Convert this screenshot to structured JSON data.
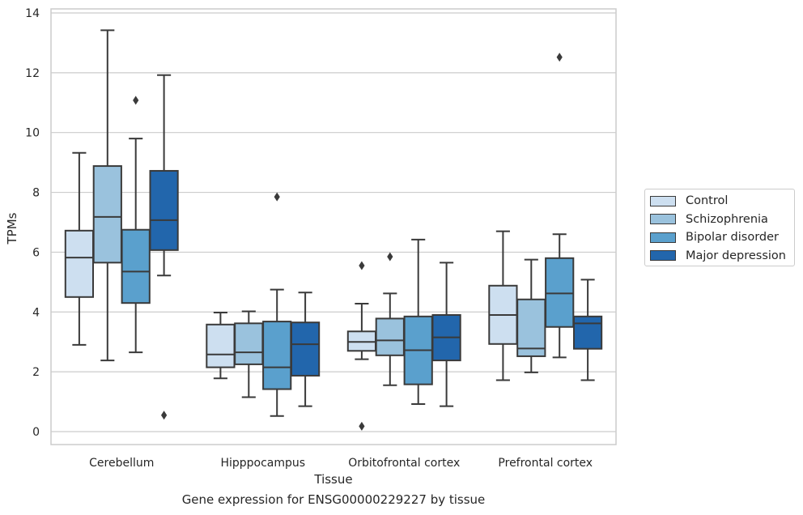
{
  "chart_data": {
    "type": "box",
    "title": "",
    "caption": "Gene expression for ENSG00000229227 by tissue",
    "xlabel": "Tissue",
    "ylabel": "TPMs",
    "ylim": [
      -0.45,
      14.15
    ],
    "yticks": [
      0,
      2,
      4,
      6,
      8,
      10,
      12,
      14
    ],
    "grid": "y",
    "legend_position": "right",
    "categories": [
      "Cerebellum",
      "Hipppocampus",
      "Orbitofrontal cortex",
      "Prefrontal cortex"
    ],
    "series": [
      {
        "name": "Control",
        "color": "#cddff0",
        "boxes": [
          {
            "whisker_low": 2.9,
            "q1": 4.5,
            "median": 5.82,
            "q3": 6.72,
            "whisker_high": 9.32,
            "outliers": []
          },
          {
            "whisker_low": 1.78,
            "q1": 2.15,
            "median": 2.58,
            "q3": 3.58,
            "whisker_high": 3.98,
            "outliers": []
          },
          {
            "whisker_low": 2.42,
            "q1": 2.7,
            "median": 3.0,
            "q3": 3.35,
            "whisker_high": 4.28,
            "outliers": [
              5.55,
              0.18
            ]
          },
          {
            "whisker_low": 1.72,
            "q1": 2.93,
            "median": 3.9,
            "q3": 4.88,
            "whisker_high": 6.7,
            "outliers": []
          }
        ]
      },
      {
        "name": "Schizophrenia",
        "color": "#9ac2dd",
        "boxes": [
          {
            "whisker_low": 2.38,
            "q1": 5.65,
            "median": 7.18,
            "q3": 8.88,
            "whisker_high": 13.42,
            "outliers": []
          },
          {
            "whisker_low": 1.15,
            "q1": 2.25,
            "median": 2.65,
            "q3": 3.62,
            "whisker_high": 4.02,
            "outliers": []
          },
          {
            "whisker_low": 1.55,
            "q1": 2.55,
            "median": 3.05,
            "q3": 3.78,
            "whisker_high": 4.62,
            "outliers": [
              5.85
            ]
          },
          {
            "whisker_low": 1.98,
            "q1": 2.52,
            "median": 2.78,
            "q3": 4.42,
            "whisker_high": 5.75,
            "outliers": []
          }
        ]
      },
      {
        "name": "Bipolar disorder",
        "color": "#5aa0cd",
        "boxes": [
          {
            "whisker_low": 2.65,
            "q1": 4.3,
            "median": 5.35,
            "q3": 6.75,
            "whisker_high": 9.8,
            "outliers": [
              11.08
            ]
          },
          {
            "whisker_low": 0.52,
            "q1": 1.42,
            "median": 2.15,
            "q3": 3.68,
            "whisker_high": 4.75,
            "outliers": [
              7.85
            ]
          },
          {
            "whisker_low": 0.92,
            "q1": 1.58,
            "median": 2.72,
            "q3": 3.85,
            "whisker_high": 6.42,
            "outliers": []
          },
          {
            "whisker_low": 2.48,
            "q1": 3.5,
            "median": 4.62,
            "q3": 5.8,
            "whisker_high": 6.6,
            "outliers": [
              12.52
            ]
          }
        ]
      },
      {
        "name": "Major depression",
        "color": "#2266ac",
        "boxes": [
          {
            "whisker_low": 5.22,
            "q1": 6.07,
            "median": 7.07,
            "q3": 8.72,
            "whisker_high": 11.92,
            "outliers": [
              0.55
            ]
          },
          {
            "whisker_low": 0.85,
            "q1": 1.87,
            "median": 2.92,
            "q3": 3.65,
            "whisker_high": 4.65,
            "outliers": []
          },
          {
            "whisker_low": 0.85,
            "q1": 2.38,
            "median": 3.15,
            "q3": 3.9,
            "whisker_high": 5.65,
            "outliers": []
          },
          {
            "whisker_low": 1.72,
            "q1": 2.77,
            "median": 3.62,
            "q3": 3.85,
            "whisker_high": 5.08,
            "outliers": []
          }
        ]
      }
    ]
  }
}
